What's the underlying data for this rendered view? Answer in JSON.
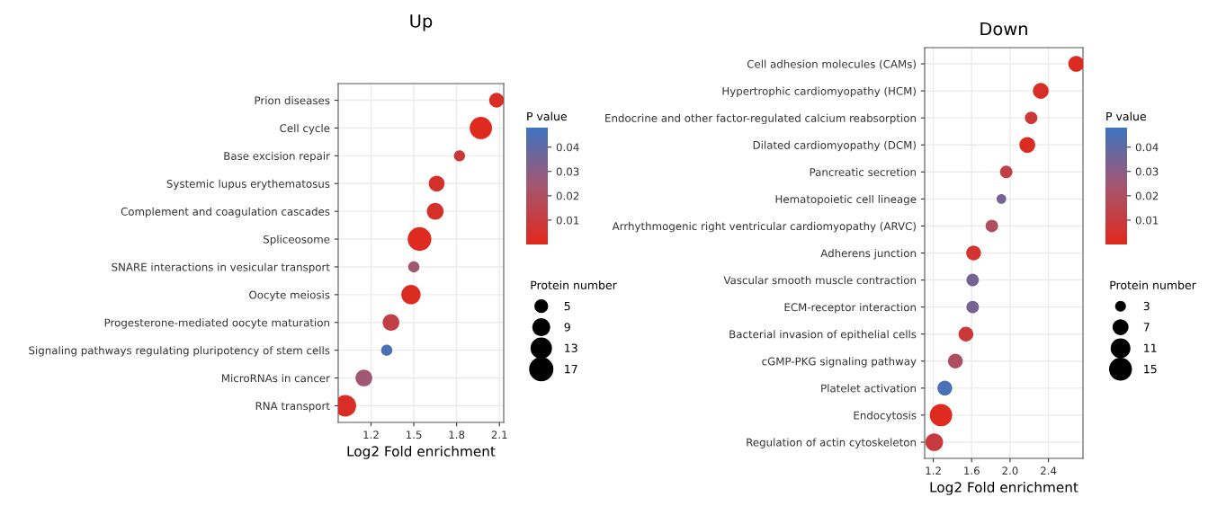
{
  "chart_data": [
    {
      "type": "bubble",
      "orientation": "horizontal",
      "title": "Up",
      "xlabel": "Log2 Fold enrichment",
      "clabel": "P value",
      "legend_title": "Protein number",
      "grid": true,
      "categories": [
        "Prion diseases",
        "Cell cycle",
        "Base excision repair",
        "Systemic lupus erythematosus",
        "Complement and coagulation cascades",
        "Spliceosome",
        "SNARE interactions in vesicular transport",
        "Oocyte meiosis",
        "Progesterone-mediated oocyte maturation",
        "Signaling pathways regulating pluripotency of stem cells",
        "MicroRNAs in cancer",
        "RNA transport"
      ],
      "values": [
        2.08,
        1.97,
        1.82,
        1.66,
        1.65,
        1.54,
        1.5,
        1.48,
        1.34,
        1.31,
        1.15,
        1.02
      ],
      "sizes": [
        7,
        16,
        4,
        8,
        9,
        18,
        4,
        12,
        9,
        4,
        9,
        15
      ],
      "cvalues": [
        0.003,
        0.001,
        0.008,
        0.005,
        0.004,
        0.001,
        0.025,
        0.002,
        0.012,
        0.045,
        0.025,
        0.003
      ],
      "size_legend": [
        5,
        9,
        13,
        17
      ],
      "xlim": [
        0.97,
        2.13
      ],
      "xticks": [
        1.2,
        1.5,
        1.8,
        2.1
      ],
      "clim": [
        0.0,
        0.048
      ],
      "cticks": [
        0.01,
        0.02,
        0.03,
        0.04
      ]
    },
    {
      "type": "bubble",
      "orientation": "horizontal",
      "title": "Down",
      "xlabel": "Log2 Fold enrichment",
      "clabel": "P value",
      "legend_title": "Protein number",
      "grid": true,
      "categories": [
        "Cell adhesion molecules (CAMs)",
        "Hypertrophic cardiomyopathy (HCM)",
        "Endocrine and other factor-regulated calcium reabsorption",
        "Dilated cardiomyopathy (DCM)",
        "Pancreatic secretion",
        "Hematopoietic cell lineage",
        "Arrhythmogenic right ventricular cardiomyopathy (ARVC)",
        "Adherens junction",
        "Vascular smooth muscle contraction",
        "ECM-receptor interaction",
        "Bacterial invasion of epithelial cells",
        "cGMP-PKG signaling pathway",
        "Platelet activation",
        "Endocytosis",
        "Regulation of actin cytoskeleton"
      ],
      "values": [
        2.69,
        2.32,
        2.22,
        2.18,
        1.96,
        1.91,
        1.81,
        1.62,
        1.61,
        1.61,
        1.54,
        1.43,
        1.32,
        1.28,
        1.21
      ],
      "sizes": [
        8,
        8,
        5,
        8,
        5,
        3,
        5,
        7,
        5,
        5,
        7,
        7,
        7,
        16,
        10
      ],
      "cvalues": [
        0.002,
        0.003,
        0.008,
        0.002,
        0.012,
        0.035,
        0.02,
        0.006,
        0.035,
        0.035,
        0.008,
        0.02,
        0.045,
        0.001,
        0.01
      ],
      "size_legend": [
        3,
        7,
        11,
        15
      ],
      "xlim": [
        1.11,
        2.76
      ],
      "xticks": [
        1.2,
        1.6,
        {
          "value": 2.0,
          "label": "2.0"
        },
        2.4
      ],
      "clim": [
        0.0,
        0.048
      ],
      "cticks": [
        0.01,
        0.02,
        0.03,
        0.04
      ]
    }
  ]
}
